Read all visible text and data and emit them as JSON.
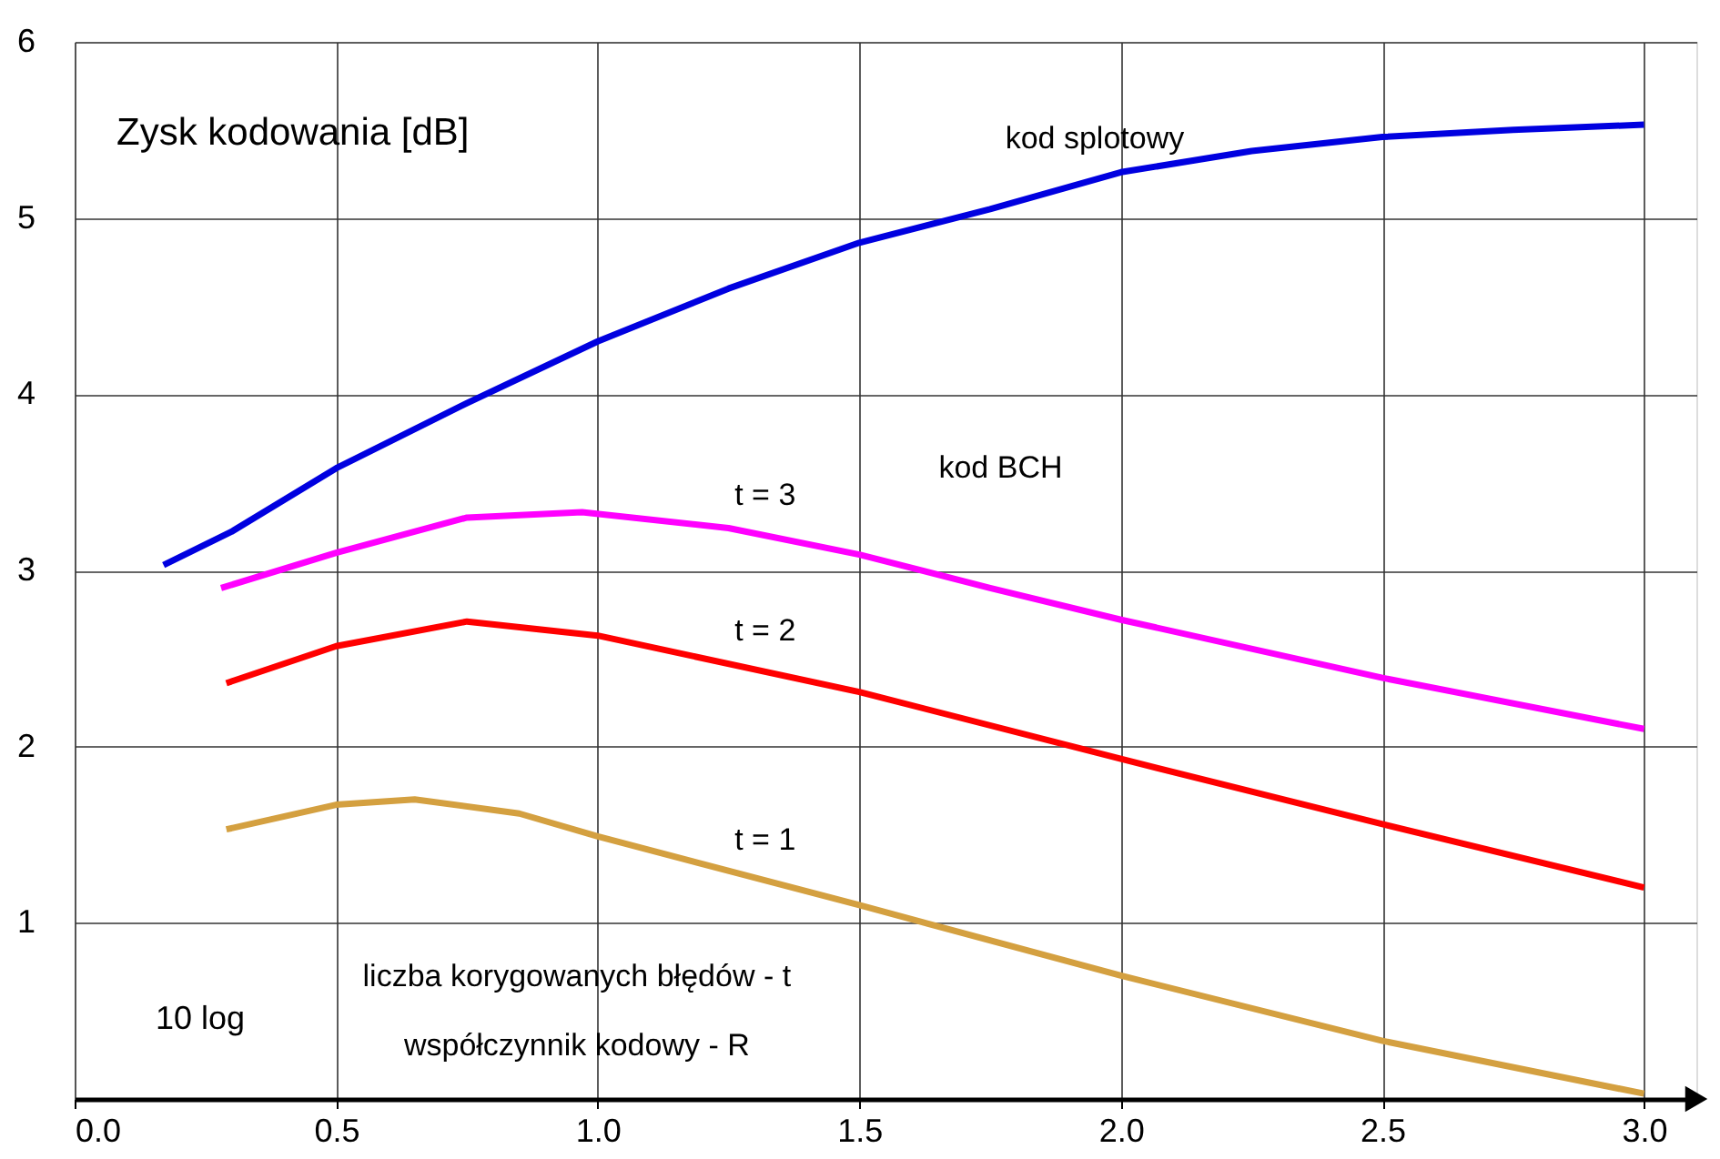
{
  "chart_data": {
    "type": "line",
    "ylabel": "Zysk kodowania [dB]",
    "xlabel": "10 log",
    "annotations": [
      "kod BCH",
      "liczba korygowanych błędów - t",
      "współczynnik kodowy - R"
    ],
    "xlim": [
      0,
      3.1
    ],
    "ylim": [
      0,
      6
    ],
    "xticks": [
      {
        "value": 0,
        "label": "0.0"
      },
      {
        "value": 0.5,
        "label": "0.5"
      },
      {
        "value": 1,
        "label": "1.0"
      },
      {
        "value": 1.5,
        "label": "1.5"
      },
      {
        "value": 2,
        "label": "2.0"
      },
      {
        "value": 2.5,
        "label": "2.5"
      },
      {
        "value": 3,
        "label": "3.0"
      }
    ],
    "yticks": [
      1,
      2,
      3,
      4,
      5,
      6
    ],
    "grid": true,
    "legend": false,
    "marker": "none",
    "line_style": "solid",
    "series": [
      {
        "name": "kod splotowy",
        "color": "#0000e0",
        "x": [
          0.17,
          0.3,
          0.5,
          0.75,
          1.0,
          1.25,
          1.5,
          1.75,
          2.0,
          2.25,
          2.5,
          2.75,
          3.0
        ],
        "values": [
          3.03,
          3.22,
          3.58,
          3.95,
          4.3,
          4.6,
          4.86,
          5.05,
          5.26,
          5.38,
          5.46,
          5.5,
          5.53
        ]
      },
      {
        "name": "t = 3",
        "color": "#ff00ff",
        "x": [
          0.28,
          0.5,
          0.75,
          0.97,
          1.25,
          1.5,
          1.75,
          2.0,
          2.5,
          3.0
        ],
        "values": [
          2.9,
          3.1,
          3.3,
          3.33,
          3.24,
          3.09,
          2.9,
          2.72,
          2.39,
          2.1
        ]
      },
      {
        "name": "t = 2",
        "color": "#ff0000",
        "x": [
          0.29,
          0.5,
          0.75,
          1.0,
          1.5,
          2.0,
          2.5,
          3.0
        ],
        "values": [
          2.36,
          2.57,
          2.71,
          2.63,
          2.31,
          1.93,
          1.56,
          1.2
        ]
      },
      {
        "name": "t = 1",
        "color": "#d4a040",
        "x": [
          0.29,
          0.5,
          0.65,
          0.85,
          1.0,
          1.5,
          2.0,
          2.5,
          3.0
        ],
        "values": [
          1.53,
          1.67,
          1.7,
          1.62,
          1.49,
          1.1,
          0.7,
          0.33,
          0.03
        ]
      }
    ]
  }
}
